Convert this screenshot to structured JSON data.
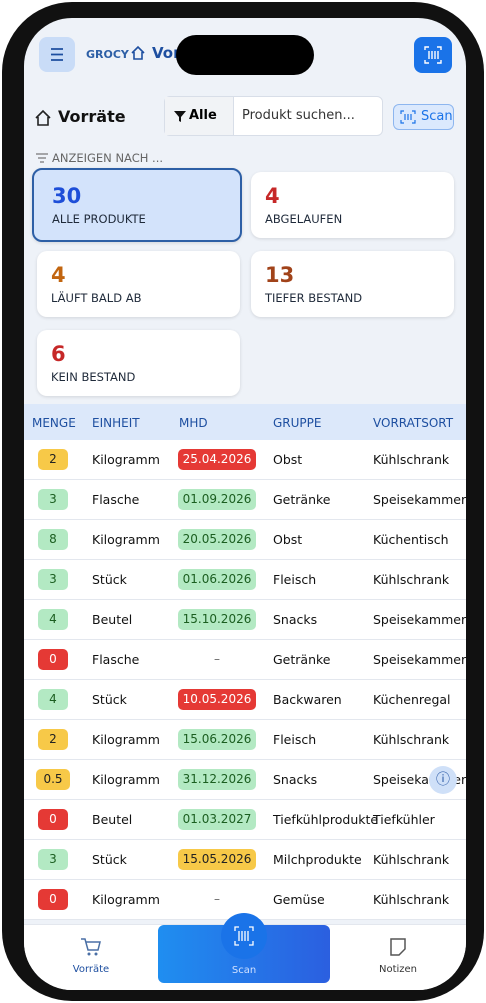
{
  "header": {
    "logo": "GROCY",
    "title": "Vorräte"
  },
  "toolbar": {
    "title": "Vorräte",
    "filter": "Alle",
    "search_placeholder": "Produkt suchen...",
    "scan": "Scan"
  },
  "filter_label": "ANZEIGEN NACH ...",
  "tiles": [
    {
      "count": "30",
      "label": "ALLE PRODUKTE",
      "color": "#1d4ed8"
    },
    {
      "count": "4",
      "label": "ABGELAUFEN",
      "color": "#c62828"
    },
    {
      "count": "4",
      "label": "LÄUFT BALD AB",
      "color": "#c2650f"
    },
    {
      "count": "13",
      "label": "TIEFER BESTAND",
      "color": "#a1431a"
    },
    {
      "count": "6",
      "label": "KEIN BESTAND",
      "color": "#c62828"
    }
  ],
  "table": {
    "headers": [
      "MENGE",
      "EINHEIT",
      "MHD",
      "GRUPPE",
      "VORRATSORT"
    ],
    "rows": [
      {
        "menge": "2",
        "menge_color": "#f7c948",
        "einheit": "Kilogramm",
        "mhd": "25.04.2026",
        "mhd_color": "#e53935",
        "gruppe": "Obst",
        "ort": "Kühlschrank"
      },
      {
        "menge": "3",
        "menge_color": "#b3e9c3",
        "einheit": "Flasche",
        "mhd": "01.09.2026",
        "mhd_color": "#b3e9c3",
        "gruppe": "Getränke",
        "ort": "Speisekammer"
      },
      {
        "menge": "8",
        "menge_color": "#b3e9c3",
        "einheit": "Kilogramm",
        "mhd": "20.05.2026",
        "mhd_color": "#b3e9c3",
        "gruppe": "Obst",
        "ort": "Küchentisch"
      },
      {
        "menge": "3",
        "menge_color": "#b3e9c3",
        "einheit": "Stück",
        "mhd": "01.06.2026",
        "mhd_color": "#b3e9c3",
        "gruppe": "Fleisch",
        "ort": "Kühlschrank"
      },
      {
        "menge": "4",
        "menge_color": "#b3e9c3",
        "einheit": "Beutel",
        "mhd": "15.10.2026",
        "mhd_color": "#b3e9c3",
        "gruppe": "Snacks",
        "ort": "Speisekammer"
      },
      {
        "menge": "0",
        "menge_color": "#e53935",
        "einheit": "Flasche",
        "mhd": "–",
        "mhd_color": "#ffffff",
        "gruppe": "Getränke",
        "ort": "Speisekammer"
      },
      {
        "menge": "4",
        "menge_color": "#b3e9c3",
        "einheit": "Stück",
        "mhd": "10.05.2026",
        "mhd_color": "#e53935",
        "gruppe": "Backwaren",
        "ort": "Küchenregal"
      },
      {
        "menge": "2",
        "menge_color": "#f7c948",
        "einheit": "Kilogramm",
        "mhd": "15.06.2026",
        "mhd_color": "#b3e9c3",
        "gruppe": "Fleisch",
        "ort": "Kühlschrank"
      },
      {
        "menge": "0.5",
        "menge_color": "#f7c948",
        "einheit": "Kilogramm",
        "mhd": "31.12.2026",
        "mhd_color": "#b3e9c3",
        "gruppe": "Snacks",
        "ort": "Speisekammer"
      },
      {
        "menge": "0",
        "menge_color": "#e53935",
        "einheit": "Beutel",
        "mhd": "01.03.2027",
        "mhd_color": "#b3e9c3",
        "gruppe": "Tiefkühlprodukte",
        "ort": "Tiefkühler"
      },
      {
        "menge": "3",
        "menge_color": "#b3e9c3",
        "einheit": "Stück",
        "mhd": "15.05.2026",
        "mhd_color": "#f7c948",
        "gruppe": "Milchprodukte",
        "ort": "Kühlschrank"
      },
      {
        "menge": "0",
        "menge_color": "#e53935",
        "einheit": "Kilogramm",
        "mhd": "–",
        "mhd_color": "#ffffff",
        "gruppe": "Gemüse",
        "ort": "Kühlschrank"
      }
    ]
  },
  "bottom_nav": {
    "left": "Vorräte",
    "center": "Scan",
    "right": "Notizen"
  }
}
